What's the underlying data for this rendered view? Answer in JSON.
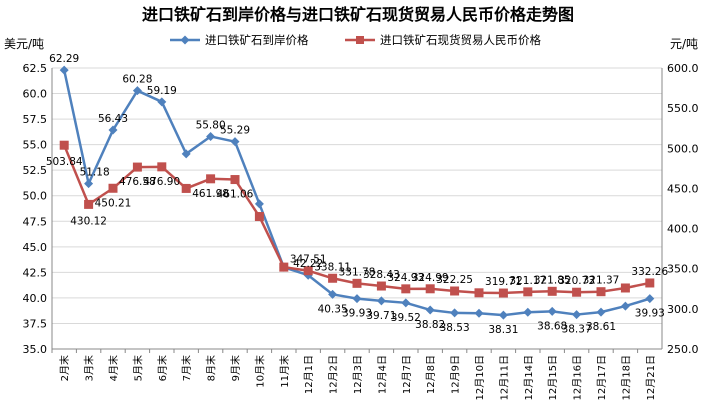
{
  "chart_data": {
    "type": "line",
    "title": "进口铁矿石到岸价格与进口铁矿石现货贸易人民币价格走势图",
    "ylabel_left": "美元/吨",
    "ylabel_right": "元/吨",
    "ylim_left": [
      35.0,
      62.5
    ],
    "ylim_right": [
      250.0,
      600.0
    ],
    "yticks_left": [
      "35.0",
      "37.5",
      "40.0",
      "42.5",
      "45.0",
      "47.5",
      "50.0",
      "52.5",
      "55.0",
      "57.5",
      "60.0",
      "62.5"
    ],
    "yticks_right": [
      "250.0",
      "300.0",
      "350.0",
      "400.0",
      "450.0",
      "500.0",
      "550.0",
      "600.0"
    ],
    "categories": [
      "2月末",
      "3月末",
      "4月末",
      "5月末",
      "6月末",
      "7月末",
      "8月末",
      "9月末",
      "10月末",
      "11月末",
      "12月1日",
      "12月2日",
      "12月3日",
      "12月4日",
      "12月7日",
      "12月8日",
      "12月9日",
      "12月10日",
      "12月11日",
      "12月14日",
      "12月15日",
      "12月16日",
      "12月17日",
      "12月18日",
      "12月21日"
    ],
    "legend_position": "top",
    "grid": true,
    "series": [
      {
        "name": "进口铁矿石到岸价格",
        "axis": "left",
        "color": "#4f81bd",
        "marker": "diamond",
        "values": [
          62.29,
          51.18,
          56.43,
          60.28,
          59.19,
          54.1,
          55.8,
          55.29,
          49.2,
          43.0,
          42.22,
          40.35,
          39.93,
          39.71,
          39.52,
          38.82,
          38.53,
          38.5,
          38.31,
          38.6,
          38.68,
          38.37,
          38.61,
          39.2,
          39.93
        ],
        "labels": [
          "62.29",
          "51.18",
          "56.43",
          "60.28",
          "59.19",
          "",
          "55.80",
          "55.29",
          "",
          "",
          "42.22",
          "40.35",
          "39.93",
          "39.71",
          "39.52",
          "38.82",
          "38.53",
          "",
          "38.31",
          "",
          "38.68",
          "38.37",
          "38.61",
          "",
          "39.93"
        ]
      },
      {
        "name": "进口铁矿石现货贸易人民币价格",
        "axis": "right",
        "color": "#c0504d",
        "marker": "square",
        "values": [
          503.84,
          430.12,
          450.21,
          476.58,
          476.9,
          450.0,
          461.98,
          461.06,
          415.0,
          352.0,
          347.51,
          338.11,
          331.78,
          328.43,
          324.93,
          324.99,
          322.25,
          320.0,
          319.71,
          321.17,
          321.85,
          320.73,
          321.37,
          326.0,
          332.26
        ],
        "labels": [
          "503.84",
          "430.12",
          "450.21",
          "476.58",
          "476.90",
          "",
          "461.98",
          "461.06",
          "",
          "",
          "347.51",
          "338.11",
          "331.78",
          "328.43",
          "324.93",
          "324.99",
          "322.25",
          "",
          "319.71",
          "321.17",
          "321.85",
          "320.73",
          "321.37",
          "",
          "332.26"
        ]
      }
    ]
  }
}
